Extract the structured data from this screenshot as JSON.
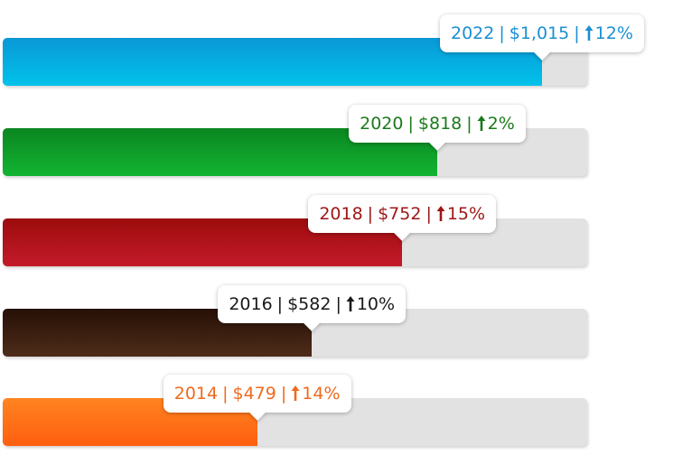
{
  "chart_data": {
    "type": "bar",
    "orientation": "horizontal",
    "categories": [
      "2022",
      "2020",
      "2018",
      "2016",
      "2014"
    ],
    "values": [
      1015,
      818,
      752,
      582,
      479
    ],
    "value_labels": [
      "$1,015",
      "$818",
      "$752",
      "$582",
      "$479"
    ],
    "changes": [
      12,
      2,
      15,
      10,
      14
    ],
    "change_labels": [
      "12%",
      "2%",
      "15%",
      "10%",
      "14%"
    ],
    "colors": [
      [
        "#0a98d6",
        "#00c2ea"
      ],
      [
        "#0b8620",
        "#12b432"
      ],
      [
        "#9c0c0c",
        "#c41a2a"
      ],
      [
        "#261006",
        "#4e2c1a"
      ],
      [
        "#ff8420",
        "#ff5e10"
      ]
    ],
    "label_colors": [
      "#1b8fd2",
      "#1b7a1b",
      "#9e1616",
      "#1a1a1a",
      "#f06a1e"
    ],
    "xlim": [
      0,
      1100
    ]
  }
}
